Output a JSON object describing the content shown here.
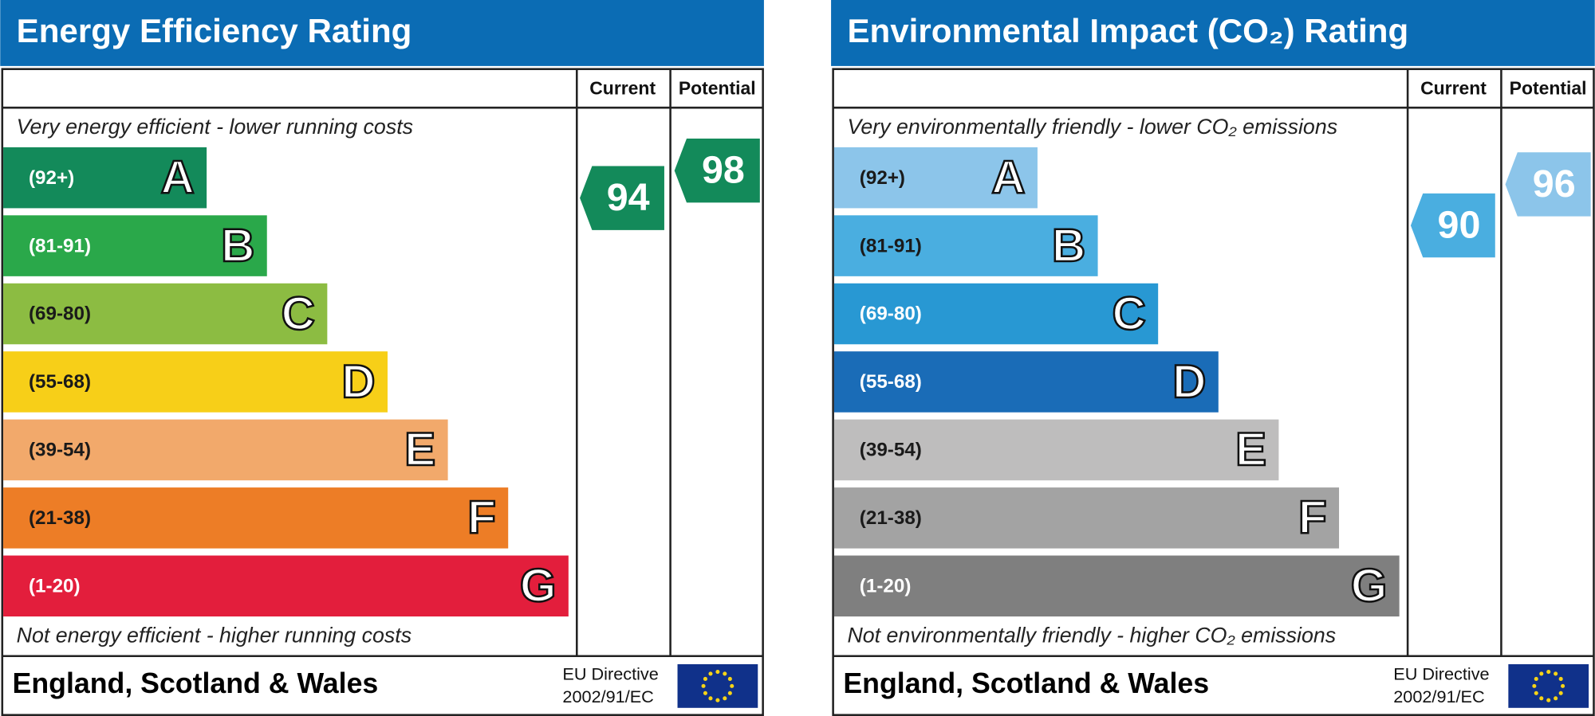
{
  "panels": [
    {
      "title": "Energy Efficiency Rating",
      "column_headers": [
        "Current",
        "Potential"
      ],
      "top_note": "Very energy efficient - lower running costs",
      "bottom_note": "Not energy efficient - higher running costs",
      "bands": [
        {
          "range": "(92+)",
          "letter": "A",
          "color": "#138a5a"
        },
        {
          "range": "(81-91)",
          "letter": "B",
          "color": "#2aa84a"
        },
        {
          "range": "(69-80)",
          "letter": "C",
          "color": "#8cbc42"
        },
        {
          "range": "(55-68)",
          "letter": "D",
          "color": "#f7cf18"
        },
        {
          "range": "(39-54)",
          "letter": "E",
          "color": "#f2a96b"
        },
        {
          "range": "(21-38)",
          "letter": "F",
          "color": "#ed7d26"
        },
        {
          "range": "(1-20)",
          "letter": "G",
          "color": "#e31e3c"
        }
      ],
      "current": {
        "value": 94,
        "color": "#138a5a"
      },
      "potential": {
        "value": 98,
        "color": "#138a5a"
      },
      "footer": {
        "region": "England, Scotland & Wales",
        "directive": [
          "EU Directive",
          "2002/91/EC"
        ]
      }
    },
    {
      "title": "Environmental Impact (CO₂) Rating",
      "column_headers": [
        "Current",
        "Potential"
      ],
      "top_note": "Very environmentally friendly - lower CO₂ emissions",
      "bottom_note": "Not environmentally friendly - higher CO₂ emissions",
      "bands": [
        {
          "range": "(92+)",
          "letter": "A",
          "color": "#8cc5ea"
        },
        {
          "range": "(81-91)",
          "letter": "B",
          "color": "#4aaee0"
        },
        {
          "range": "(69-80)",
          "letter": "C",
          "color": "#2898d3"
        },
        {
          "range": "(55-68)",
          "letter": "D",
          "color": "#1a6cb7"
        },
        {
          "range": "(39-54)",
          "letter": "E",
          "color": "#bebdbd"
        },
        {
          "range": "(21-38)",
          "letter": "F",
          "color": "#a3a3a3"
        },
        {
          "range": "(1-20)",
          "letter": "G",
          "color": "#7f7f7f"
        }
      ],
      "current": {
        "value": 90,
        "color": "#4aaee0"
      },
      "potential": {
        "value": 96,
        "color": "#8cc5ea"
      },
      "footer": {
        "region": "England, Scotland & Wales",
        "directive": [
          "EU Directive",
          "2002/91/EC"
        ]
      }
    }
  ]
}
